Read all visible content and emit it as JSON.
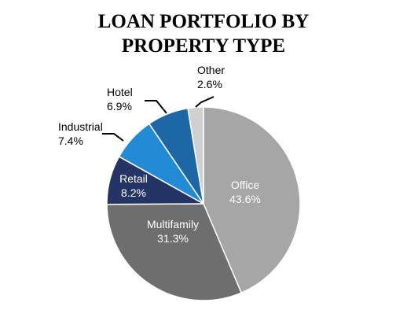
{
  "chart_data": {
    "type": "pie",
    "title": [
      "LOAN PORTFOLIO BY",
      "PROPERTY TYPE"
    ],
    "slices": [
      {
        "label": "Office",
        "value": 43.6,
        "value_label": "43.6%",
        "color": "#a6a6a6",
        "label_color": "#ffffff",
        "label_position": "inside"
      },
      {
        "label": "Multifamily",
        "value": 31.3,
        "value_label": "31.3%",
        "color": "#6e6e6e",
        "label_color": "#ffffff",
        "label_position": "inside"
      },
      {
        "label": "Retail",
        "value": 8.2,
        "value_label": "8.2%",
        "color": "#243464",
        "label_color": "#ffffff",
        "label_position": "inside"
      },
      {
        "label": "Industrial",
        "value": 7.4,
        "value_label": "7.4%",
        "color": "#238bd6",
        "label_color": "#000000",
        "label_position": "outside"
      },
      {
        "label": "Hotel",
        "value": 6.9,
        "value_label": "6.9%",
        "color": "#1d67a6",
        "label_color": "#000000",
        "label_position": "outside"
      },
      {
        "label": "Other",
        "value": 2.6,
        "value_label": "2.6%",
        "color": "#d0d0d0",
        "label_color": "#000000",
        "label_position": "outside"
      }
    ],
    "start_angle": "12 o'clock",
    "direction": "clockwise",
    "legend": "none"
  }
}
